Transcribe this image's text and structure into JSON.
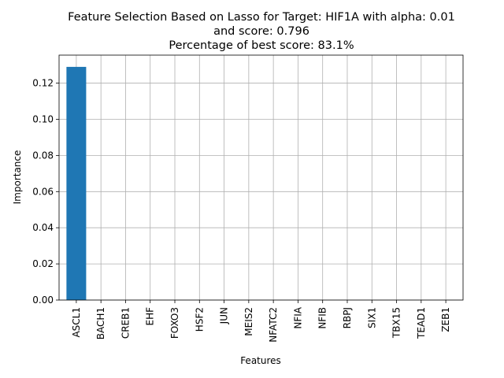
{
  "chart_data": {
    "type": "bar",
    "title_lines": [
      "Feature Selection Based on Lasso for Target: HIF1A with alpha: 0.01",
      "and score: 0.796",
      "Percentage of best score: 83.1%"
    ],
    "xlabel": "Features",
    "ylabel": "Importance",
    "categories": [
      "ASCL1",
      "BACH1",
      "CREB1",
      "EHF",
      "FOXO3",
      "HSF2",
      "JUN",
      "MEIS2",
      "NFATC2",
      "NFIA",
      "NFIB",
      "RBPJ",
      "SIX1",
      "TBX15",
      "TEAD1",
      "ZEB1"
    ],
    "values": [
      0.129,
      0,
      0,
      0,
      0,
      0,
      0,
      0,
      0,
      0,
      0,
      0,
      0,
      0,
      0,
      0
    ],
    "ylim": [
      0,
      0.1355
    ],
    "yticks": [
      0.0,
      0.02,
      0.04,
      0.06,
      0.08,
      0.1,
      0.12
    ],
    "ytick_labels": [
      "0.00",
      "0.02",
      "0.04",
      "0.06",
      "0.08",
      "0.10",
      "0.12"
    ],
    "grid": true,
    "bar_color": "#1f77b4"
  }
}
